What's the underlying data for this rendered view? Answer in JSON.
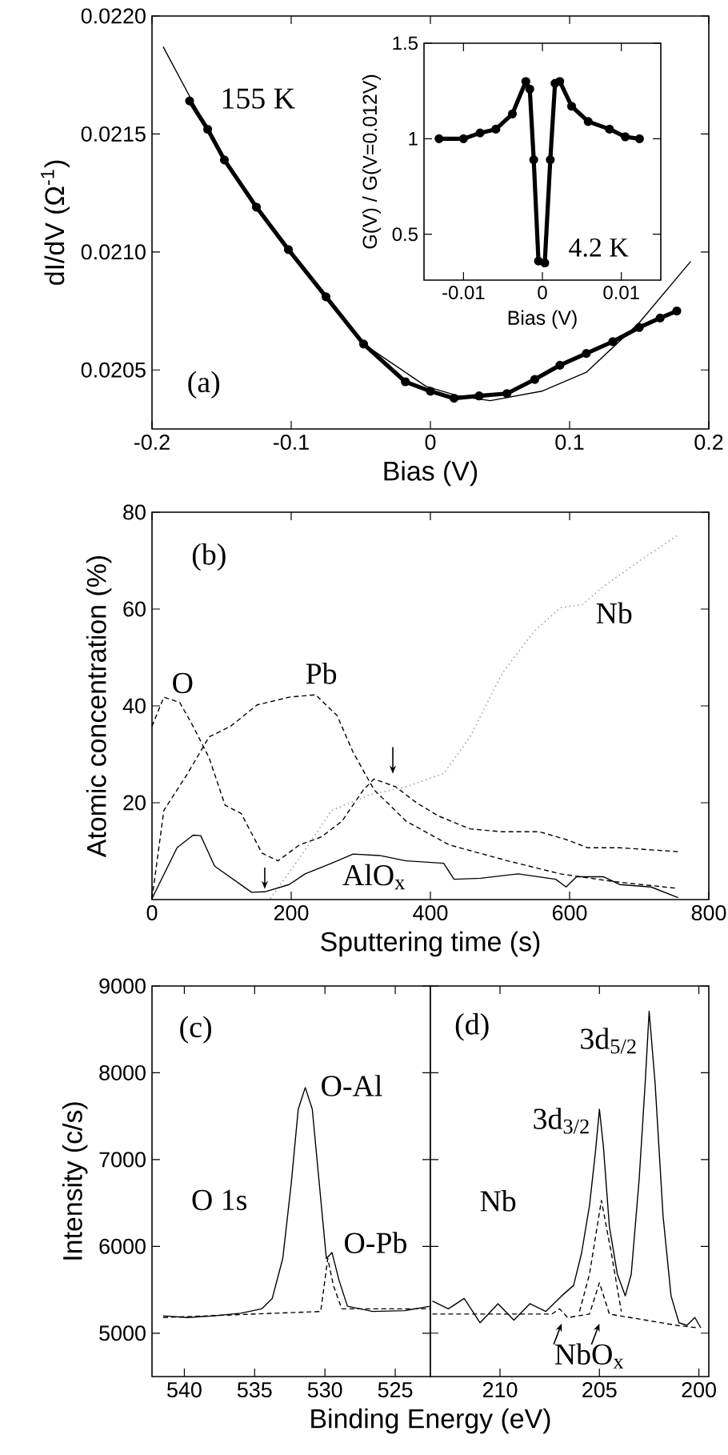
{
  "chart_data": [
    {
      "type": "line",
      "xlabel": "Bias (V)",
      "ylabel": "dI/dV (Ω$^{-1}$)",
      "xlim": [
        -0.2,
        0.2
      ],
      "ylim": [
        0.02025,
        0.022
      ],
      "xticks": [
        -0.2,
        -0.1,
        0,
        0.1,
        0.2
      ],
      "yticks": [
        0.0205,
        {
          "value": 0.021,
          "label": "0.0210"
        },
        0.0215,
        {
          "value": 0.022,
          "label": "0.0220"
        }
      ],
      "series": [
        {
          "color": "#000000",
          "marker": "circle",
          "x": [
            -0.173,
            -0.16,
            -0.148,
            -0.125,
            -0.102,
            -0.075,
            -0.048,
            -0.018,
            0.0,
            0.017,
            0.035,
            0.055,
            0.075,
            0.093,
            0.112,
            0.131,
            0.15,
            0.165,
            0.177
          ],
          "values": [
            0.02164,
            0.02152,
            0.02139,
            0.02119,
            0.02101,
            0.02081,
            0.02061,
            0.02045,
            0.02041,
            0.02038,
            0.02039,
            0.0204,
            0.02046,
            0.02052,
            0.02057,
            0.02062,
            0.02068,
            0.02072,
            0.02075
          ]
        },
        {
          "color": "#000000",
          "x": [
            -0.192,
            -0.173,
            -0.148,
            -0.102,
            -0.048,
            -0.003,
            0.02,
            0.043,
            0.08,
            0.112,
            0.15,
            0.187
          ],
          "values": [
            0.02187,
            0.02166,
            0.02139,
            0.02101,
            0.02061,
            0.02043,
            0.02039,
            0.02037,
            0.02041,
            0.02049,
            0.0207,
            0.02096
          ]
        }
      ],
      "annotations": [
        "155 K",
        "(a)"
      ]
    },
    {
      "type": "line",
      "xlabel": "Bias (V)",
      "ylabel": "G(V) / G(V=0.012V)",
      "xlim": [
        -0.015,
        0.015
      ],
      "ylim": [
        0.26,
        1.5
      ],
      "xticks": [
        -0.01,
        0,
        0.01
      ],
      "yticks": [
        0.5,
        1,
        1.5
      ],
      "series": [
        {
          "color": "#000000",
          "marker": "circle",
          "x": [
            -0.0131,
            -0.01,
            -0.0079,
            -0.0059,
            -0.0038,
            -0.0021,
            -0.0016,
            -0.0011,
            -0.0005,
            0.0003,
            0.001,
            0.0016,
            0.0022,
            0.0037,
            0.0058,
            0.0085,
            0.0105,
            0.0123
          ],
          "values": [
            1.0,
            1.0,
            1.03,
            1.05,
            1.13,
            1.3,
            1.26,
            0.89,
            0.36,
            0.35,
            0.89,
            1.29,
            1.3,
            1.17,
            1.09,
            1.05,
            1.01,
            1.0
          ]
        }
      ],
      "annotations": [
        "4.2 K"
      ]
    },
    {
      "type": "line",
      "xlabel": "Sputtering time (s)",
      "ylabel": "Atomic concentration (%)",
      "xlim": [
        0,
        800
      ],
      "ylim": [
        0,
        80
      ],
      "xticks": [
        0,
        200,
        400,
        600,
        800
      ],
      "yticks": [
        20,
        40,
        60,
        80
      ],
      "series": [
        {
          "color": "#000000",
          "line_style": "dashed",
          "x": [
            0,
            17,
            40,
            59,
            82,
            105,
            128,
            158,
            181,
            212,
            243,
            273,
            304,
            319,
            350,
            380,
            411,
            457,
            503,
            557,
            595,
            626,
            672,
            756
          ],
          "values": [
            35.8,
            41.8,
            40.7,
            35.8,
            29.3,
            19.5,
            17.8,
            9.6,
            8.0,
            11.3,
            12.9,
            16.2,
            22.7,
            24.9,
            23.3,
            20.0,
            17.3,
            14.6,
            14.0,
            14.0,
            12.4,
            10.7,
            10.7,
            9.9
          ]
        },
        {
          "color": "#000000",
          "line_style": "dashed",
          "x": [
            0,
            17,
            51,
            82,
            113,
            151,
            197,
            235,
            266,
            289,
            319,
            365,
            427,
            511,
            587,
            664,
            756
          ],
          "values": [
            0.2,
            18.4,
            26.0,
            33.6,
            35.8,
            40.2,
            41.8,
            42.3,
            38.0,
            30.4,
            22.7,
            16.2,
            11.3,
            8.0,
            5.3,
            3.7,
            2.3
          ]
        },
        {
          "color": "#8c8c8c",
          "line_style": "dotted",
          "x": [
            170,
            212,
            258,
            312,
            365,
            419,
            457,
            503,
            549,
            587,
            618,
            649,
            702,
            756
          ],
          "values": [
            0.2,
            8.6,
            18.4,
            21.6,
            23.3,
            26.0,
            33.6,
            46.7,
            55.4,
            60.3,
            60.9,
            64.7,
            70.1,
            75.3
          ]
        },
        {
          "color": "#000000",
          "line_style": "solid",
          "x": [
            0,
            36,
            59,
            70,
            90,
            143,
            162,
            197,
            220,
            258,
            289,
            327,
            365,
            419,
            434,
            472,
            526,
            580,
            595,
            610,
            649,
            672,
            717,
            756
          ],
          "values": [
            0.2,
            10.7,
            13.3,
            13.2,
            6.9,
            1.5,
            1.6,
            3.1,
            5.3,
            7.5,
            9.4,
            9.1,
            8.0,
            7.5,
            4.2,
            4.4,
            5.3,
            4.2,
            2.6,
            4.7,
            4.7,
            3.1,
            2.6,
            0.4
          ]
        }
      ],
      "annotations": [
        "(b)",
        "O",
        "Pb",
        "Nb",
        "AlO$_{x}$"
      ]
    },
    {
      "type": "line",
      "xlabel": "Binding Energy (eV)",
      "ylabel": "Intensity (c/s)",
      "xlim": [
        542.3,
        522.5
      ],
      "ylim": [
        4500,
        9000
      ],
      "xticks": [
        540,
        535,
        530,
        525
      ],
      "yticks": [
        5000,
        6000,
        7000,
        8000,
        9000
      ],
      "series": [
        {
          "color": "#000000",
          "line_style": "solid",
          "x": [
            541.5,
            539.8,
            537.9,
            536.0,
            534.5,
            533.75,
            533.0,
            532.4,
            531.9,
            531.4,
            530.9,
            530.4,
            529.9,
            529.5,
            529.0,
            528.4,
            526.6,
            524.3,
            522.5
          ],
          "values": [
            5200,
            5180,
            5200,
            5230,
            5280,
            5400,
            5860,
            6720,
            7580,
            7830,
            7580,
            6720,
            5860,
            5930,
            5610,
            5310,
            5250,
            5260,
            5310
          ]
        },
        {
          "color": "#000000",
          "line_style": "dashed",
          "x": [
            541.5,
            530.3,
            529.8,
            529.4,
            528.8,
            522.5
          ],
          "values": [
            5180,
            5250,
            5860,
            5550,
            5280,
            5280
          ]
        }
      ],
      "annotations": [
        "(c)",
        "O 1s",
        "O-Al",
        "O-Pb"
      ]
    },
    {
      "type": "line",
      "xlim": [
        213.5,
        199.5
      ],
      "ylim": [
        4500,
        9000
      ],
      "xticks": [
        210,
        205,
        200
      ],
      "yticks": [
        5000,
        6000,
        7000,
        8000,
        9000
      ],
      "tick_labels": "x",
      "series": [
        {
          "color": "#000000",
          "line_style": "solid",
          "x": [
            213.4,
            212.6,
            211.8,
            211.0,
            210.1,
            209.3,
            208.5,
            207.7,
            206.9,
            206.3,
            205.9,
            205.5,
            205.2,
            205.0,
            204.8,
            204.5,
            204.1,
            203.7,
            203.4,
            203.0,
            202.7,
            202.5,
            202.2,
            201.8,
            201.4,
            201.0,
            200.6,
            200.2,
            199.9
          ],
          "values": [
            5370,
            5280,
            5400,
            5120,
            5340,
            5150,
            5340,
            5250,
            5430,
            5550,
            5920,
            6470,
            7090,
            7580,
            7150,
            6230,
            5680,
            5430,
            5680,
            6780,
            7880,
            8710,
            7880,
            6350,
            5430,
            5120,
            5090,
            5180,
            5060
          ]
        },
        {
          "color": "#000000",
          "line_style": "dashed",
          "x": [
            213.4,
            207.4,
            207.0,
            206.6,
            205.5,
            205.0,
            204.5,
            201.1,
            200.0
          ],
          "values": [
            5220,
            5220,
            5280,
            5180,
            5220,
            5580,
            5220,
            5090,
            5060
          ]
        },
        {
          "color": "#000000",
          "line_style": "dashed",
          "x": [
            206.0,
            205.5,
            204.9,
            204.4,
            203.9
          ],
          "values": [
            5250,
            5680,
            6530,
            5920,
            5250
          ]
        }
      ],
      "annotations": [
        "(d)",
        "Nb",
        "3d$_{5/2}$",
        "3d$_{3/2}$",
        "NbO$_{x}$"
      ]
    }
  ]
}
